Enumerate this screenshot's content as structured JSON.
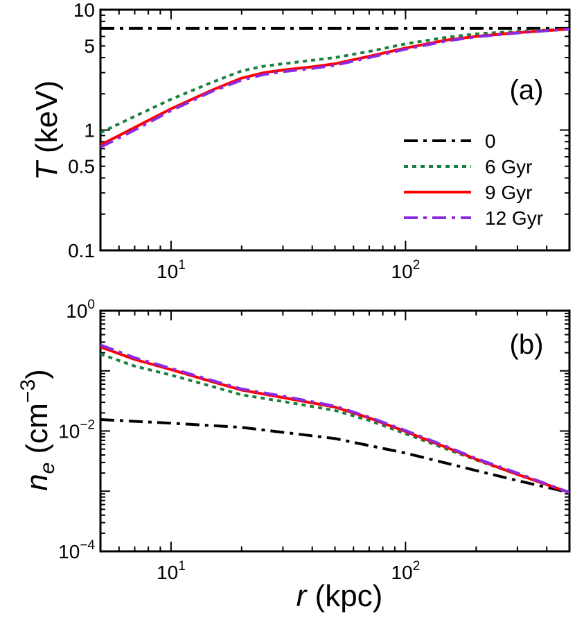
{
  "colors": {
    "axis": "#000000",
    "series_0": "#000000",
    "series_6": "#1a7f3c",
    "series_9": "#ff0000",
    "series_12": "#8a2be2"
  },
  "chart_data": [
    {
      "type": "line",
      "panel_label": "(a)",
      "ylabel": "T (keV)",
      "ylabel_var": "T",
      "ylabel_unit": "(keV)",
      "xlabel": "",
      "x_scale": "log",
      "y_scale": "log",
      "xlim": [
        5,
        500
      ],
      "ylim": [
        0.1,
        10
      ],
      "x_ticks": [
        {
          "value": 10,
          "base": "10",
          "exp": "1"
        },
        {
          "value": 100,
          "base": "10",
          "exp": "2"
        }
      ],
      "y_ticks": [
        {
          "value": 10,
          "label": "10"
        },
        {
          "value": 5,
          "label": "5"
        },
        {
          "value": 1,
          "label": "1"
        },
        {
          "value": 0.5,
          "label": "0.5"
        },
        {
          "value": 0.1,
          "label": "0.1"
        }
      ],
      "legend": {
        "position": "center-right",
        "entries": [
          "0",
          "6 Gyr",
          "9 Gyr",
          "12 Gyr"
        ]
      },
      "series": [
        {
          "name": "0",
          "style": "dashdot",
          "color_key": "series_0",
          "x": [
            5,
            10,
            20,
            50,
            100,
            200,
            500
          ],
          "y": [
            7.0,
            7.0,
            7.0,
            7.0,
            7.0,
            7.0,
            7.0
          ]
        },
        {
          "name": "6 Gyr",
          "style": "dotted",
          "color_key": "series_6",
          "x": [
            5,
            7,
            10,
            15,
            20,
            25,
            30,
            40,
            50,
            70,
            100,
            150,
            200,
            300,
            500
          ],
          "y": [
            0.95,
            1.3,
            1.8,
            2.5,
            3.1,
            3.4,
            3.55,
            3.8,
            4.0,
            4.5,
            5.2,
            5.9,
            6.3,
            6.6,
            6.9
          ]
        },
        {
          "name": "9 Gyr",
          "style": "solid",
          "color_key": "series_9",
          "x": [
            5,
            7,
            10,
            15,
            20,
            25,
            30,
            40,
            50,
            70,
            100,
            150,
            200,
            300,
            500
          ],
          "y": [
            0.75,
            1.05,
            1.5,
            2.15,
            2.7,
            3.0,
            3.15,
            3.35,
            3.55,
            4.1,
            4.8,
            5.6,
            6.0,
            6.45,
            6.9
          ]
        },
        {
          "name": "12 Gyr",
          "style": "dashdot",
          "color_key": "series_12",
          "x": [
            5,
            7,
            10,
            15,
            20,
            25,
            30,
            40,
            50,
            70,
            100,
            150,
            200,
            300,
            500
          ],
          "y": [
            0.72,
            1.0,
            1.45,
            2.1,
            2.6,
            2.9,
            3.05,
            3.25,
            3.45,
            4.0,
            4.7,
            5.5,
            5.95,
            6.4,
            6.9
          ]
        }
      ]
    },
    {
      "type": "line",
      "panel_label": "(b)",
      "ylabel": "n_e (cm^-3)",
      "ylabel_var": "n",
      "ylabel_sub": "e",
      "ylabel_unit_open": "(cm",
      "ylabel_unit_exp": "−3",
      "ylabel_unit_close": ")",
      "xlabel": "r (kpc)",
      "xlabel_var": "r",
      "xlabel_unit": "(kpc)",
      "x_scale": "log",
      "y_scale": "log",
      "xlim": [
        5,
        500
      ],
      "ylim": [
        0.0001,
        1
      ],
      "x_ticks": [
        {
          "value": 10,
          "base": "10",
          "exp": "1"
        },
        {
          "value": 100,
          "base": "10",
          "exp": "2"
        }
      ],
      "y_ticks": [
        {
          "value": 1,
          "base": "10",
          "exp": "0"
        },
        {
          "value": 0.01,
          "base": "10",
          "exp": "−2"
        },
        {
          "value": 0.0001,
          "base": "10",
          "exp": "−4"
        }
      ],
      "series": [
        {
          "name": "0",
          "style": "dashdot",
          "color_key": "series_0",
          "x": [
            5,
            10,
            20,
            50,
            100,
            200,
            300,
            500
          ],
          "y": [
            0.0155,
            0.0135,
            0.0115,
            0.0075,
            0.0043,
            0.0022,
            0.0015,
            0.00095
          ]
        },
        {
          "name": "6 Gyr",
          "style": "dotted",
          "color_key": "series_6",
          "x": [
            5,
            7,
            10,
            15,
            20,
            30,
            50,
            70,
            100,
            150,
            200,
            300,
            500
          ],
          "y": [
            0.19,
            0.12,
            0.085,
            0.055,
            0.04,
            0.031,
            0.022,
            0.015,
            0.009,
            0.005,
            0.0033,
            0.0019,
            0.00095
          ]
        },
        {
          "name": "9 Gyr",
          "style": "solid",
          "color_key": "series_9",
          "x": [
            5,
            7,
            10,
            15,
            20,
            30,
            50,
            70,
            100,
            150,
            200,
            300,
            500
          ],
          "y": [
            0.25,
            0.155,
            0.105,
            0.066,
            0.048,
            0.036,
            0.025,
            0.0165,
            0.0098,
            0.0053,
            0.0034,
            0.0019,
            0.00095
          ]
        },
        {
          "name": "12 Gyr",
          "style": "dashdot",
          "color_key": "series_12",
          "x": [
            5,
            7,
            10,
            15,
            20,
            30,
            50,
            70,
            100,
            150,
            200,
            300,
            500
          ],
          "y": [
            0.27,
            0.165,
            0.11,
            0.069,
            0.05,
            0.038,
            0.026,
            0.017,
            0.0102,
            0.0055,
            0.0035,
            0.002,
            0.00095
          ]
        }
      ]
    }
  ]
}
